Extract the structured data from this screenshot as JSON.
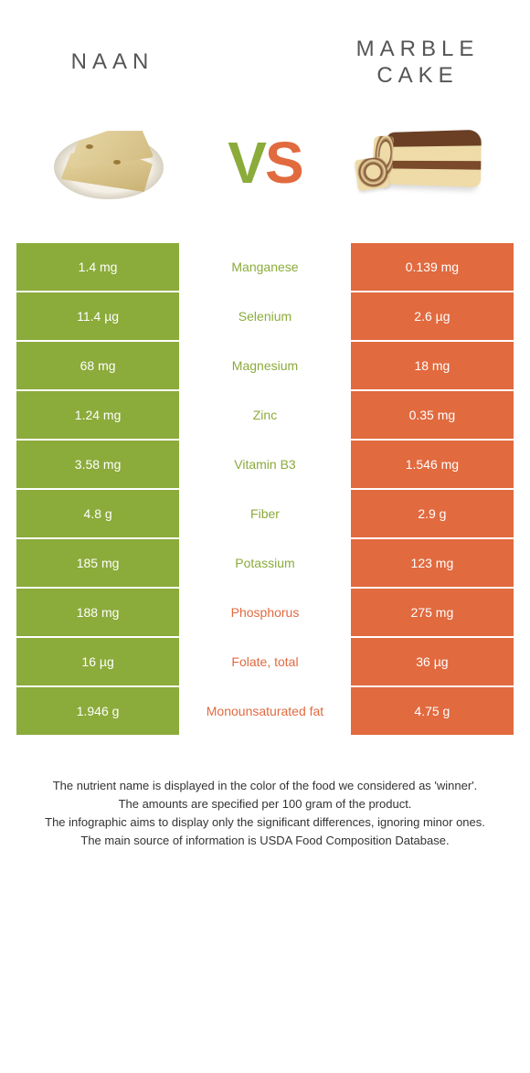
{
  "header": {
    "title_left": "NAAN",
    "title_right_line1": "MARBLE",
    "title_right_line2": "CAKE",
    "vs_v": "V",
    "vs_s": "S"
  },
  "colors": {
    "left": "#8bab3b",
    "right": "#e16a3f",
    "background": "#ffffff",
    "text": "#333333"
  },
  "comparison": {
    "type": "table",
    "columns": [
      "left_value",
      "nutrient",
      "right_value"
    ],
    "rows": [
      {
        "left": "1.4 mg",
        "nutrient": "Manganese",
        "right": "0.139 mg",
        "winner": "left"
      },
      {
        "left": "11.4 µg",
        "nutrient": "Selenium",
        "right": "2.6 µg",
        "winner": "left"
      },
      {
        "left": "68 mg",
        "nutrient": "Magnesium",
        "right": "18 mg",
        "winner": "left"
      },
      {
        "left": "1.24 mg",
        "nutrient": "Zinc",
        "right": "0.35 mg",
        "winner": "left"
      },
      {
        "left": "3.58 mg",
        "nutrient": "Vitamin B3",
        "right": "1.546 mg",
        "winner": "left"
      },
      {
        "left": "4.8 g",
        "nutrient": "Fiber",
        "right": "2.9 g",
        "winner": "left"
      },
      {
        "left": "185 mg",
        "nutrient": "Potassium",
        "right": "123 mg",
        "winner": "left"
      },
      {
        "left": "188 mg",
        "nutrient": "Phosphorus",
        "right": "275 mg",
        "winner": "right"
      },
      {
        "left": "16 µg",
        "nutrient": "Folate, total",
        "right": "36 µg",
        "winner": "right"
      },
      {
        "left": "1.946 g",
        "nutrient": "Monounsaturated fat",
        "right": "4.75 g",
        "winner": "right"
      }
    ]
  },
  "footnote": {
    "line1": "The nutrient name is displayed in the color of the food we considered as 'winner'.",
    "line2": "The amounts are specified per 100 gram of the product.",
    "line3": "The infographic aims to display only the significant differences, ignoring minor ones.",
    "line4": "The main source of information is USDA Food Composition Database."
  }
}
